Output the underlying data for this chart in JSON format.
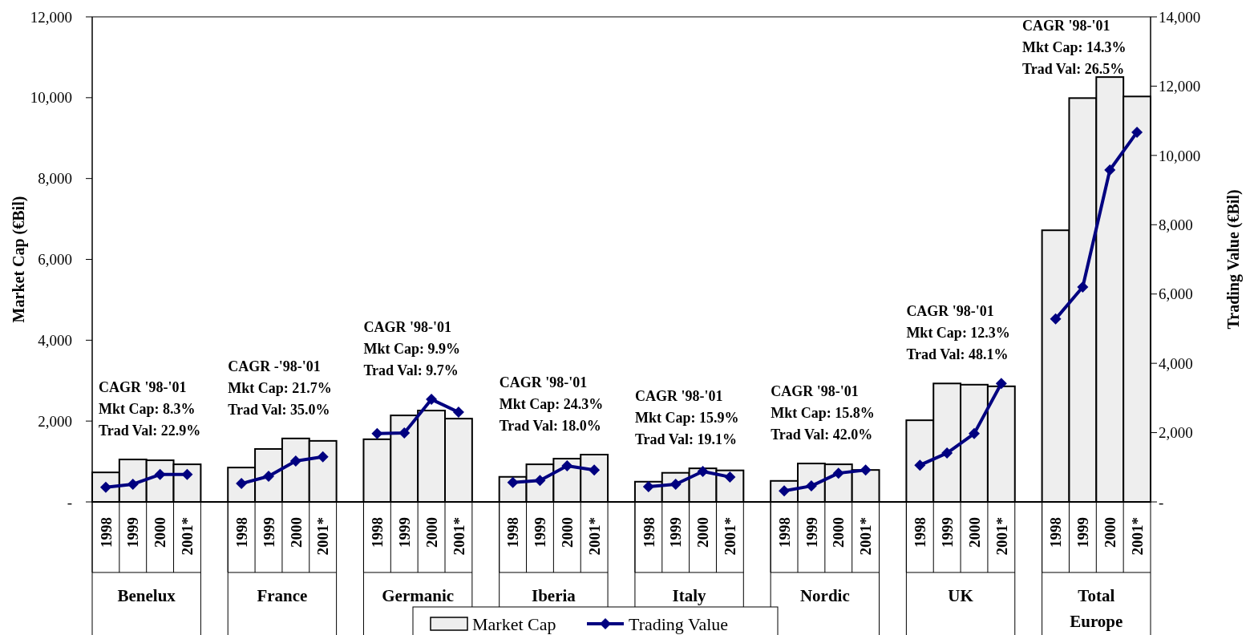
{
  "chart_data": {
    "type": "bar",
    "ylabel": "Market Cap (€Bil)",
    "y2label": "Trading Value (€Bil)",
    "categories": [
      "1998",
      "1999",
      "2000",
      "2001*",
      null,
      "1998",
      "1999",
      "2000",
      "2001*",
      null,
      "1998",
      "1999",
      "2000",
      "2001*",
      null,
      "1998",
      "1999",
      "2000",
      "2001*",
      null,
      "1998",
      "1999",
      "2000",
      "2001*",
      null,
      "1998",
      "1999",
      "2000",
      "2001*",
      null,
      "1998",
      "1999",
      "2000",
      "2001*",
      null,
      "1998",
      "1999",
      "2000",
      "2001*"
    ],
    "series": [
      {
        "name": "Market Cap",
        "color": "#eeeeee",
        "values": [
          730,
          1050,
          1030,
          930,
          null,
          850,
          1310,
          1570,
          1510,
          null,
          1550,
          2140,
          2260,
          2060,
          null,
          620,
          930,
          1070,
          1170,
          null,
          500,
          720,
          830,
          780,
          null,
          520,
          950,
          930,
          790,
          null,
          2020,
          2930,
          2900,
          2860,
          null,
          6720,
          9990,
          10510,
          10030
        ]
      },
      {
        "name": "Trading Value",
        "type": "line",
        "axis": "y2",
        "color": "#000080",
        "marker": "diamond",
        "line_style": "solid",
        "values": [
          420,
          510,
          790,
          790,
          null,
          530,
          740,
          1180,
          1300,
          null,
          1970,
          1990,
          2960,
          2590,
          null,
          560,
          620,
          1040,
          920,
          null,
          440,
          510,
          880,
          720,
          null,
          320,
          460,
          830,
          920,
          null,
          1060,
          1410,
          1970,
          3420,
          null,
          5280,
          6200,
          9580,
          10670
        ]
      }
    ],
    "ylim": [
      0,
      12000
    ],
    "yticks": [
      {
        "value": 0,
        "label": "-"
      },
      {
        "value": 2000,
        "label": "2,000"
      },
      {
        "value": 4000,
        "label": "4,000"
      },
      {
        "value": 6000,
        "label": "6,000"
      },
      {
        "value": 8000,
        "label": "8,000"
      },
      {
        "value": 10000,
        "label": "10,000"
      },
      {
        "value": 12000,
        "label": "12,000"
      }
    ],
    "y2lim": [
      0,
      14000
    ],
    "y2ticks": [
      {
        "value": 0,
        "label": "-"
      },
      {
        "value": 2000,
        "label": "2,000"
      },
      {
        "value": 4000,
        "label": "4,000"
      },
      {
        "value": 6000,
        "label": "6,000"
      },
      {
        "value": 8000,
        "label": "8,000"
      },
      {
        "value": 10000,
        "label": "10,000"
      },
      {
        "value": 12000,
        "label": "12,000"
      },
      {
        "value": 14000,
        "label": "14,000"
      }
    ],
    "annotations": [
      "Benelux",
      "France",
      "Germanic",
      "Iberia",
      "Italy",
      "Nordic",
      "UK",
      "Total\nEurope",
      "CAGR '98-'01\nMkt Cap: 8.3%\nTrad Val: 22.9%",
      "CAGR -'98-'01\nMkt Cap: 21.7%\nTrad Val: 35.0%",
      "CAGR '98-'01\nMkt Cap: 9.9%\nTrad Val: 9.7%",
      "CAGR '98-'01\nMkt Cap: 24.3%\nTrad Val: 18.0%",
      "CAGR '98-'01\nMkt Cap: 15.9%\nTrad Val: 19.1%",
      "CAGR '98-'01\nMkt Cap: 15.8%\nTrad Val: 42.0%",
      "CAGR '98-'01\nMkt Cap: 12.3%\nTrad Val: 48.1%",
      "CAGR '98-'01\nMkt Cap: 14.3%\nTrad Val: 26.5%"
    ],
    "grid": false,
    "legend": "bottom"
  }
}
